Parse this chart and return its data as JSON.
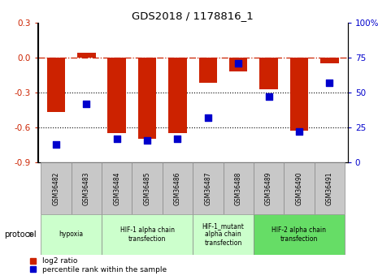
{
  "title": "GDS2018 / 1178816_1",
  "samples": [
    "GSM36482",
    "GSM36483",
    "GSM36484",
    "GSM36485",
    "GSM36486",
    "GSM36487",
    "GSM36488",
    "GSM36489",
    "GSM36490",
    "GSM36491"
  ],
  "log2_ratio": [
    -0.47,
    0.04,
    -0.65,
    -0.7,
    -0.65,
    -0.22,
    -0.12,
    -0.27,
    -0.63,
    -0.05
  ],
  "percentile_rank": [
    13,
    42,
    17,
    16,
    17,
    32,
    71,
    47,
    22,
    57
  ],
  "ylim_left": [
    -0.9,
    0.3
  ],
  "ylim_right": [
    0,
    100
  ],
  "left_ticks": [
    -0.9,
    -0.6,
    -0.3,
    0.0,
    0.3
  ],
  "right_ticks": [
    0,
    25,
    50,
    75,
    100
  ],
  "bar_color": "#cc2200",
  "dot_color": "#0000cc",
  "dot_size": 28,
  "dotted_lines": [
    -0.3,
    -0.6
  ],
  "protocol_groups": [
    {
      "label": "hypoxia",
      "start": 0,
      "end": 1,
      "color": "#ccffcc"
    },
    {
      "label": "HIF-1 alpha chain\ntransfection",
      "start": 2,
      "end": 4,
      "color": "#ccffcc"
    },
    {
      "label": "HIF-1_mutant\nalpha chain\ntransfection",
      "start": 5,
      "end": 6,
      "color": "#ccffcc"
    },
    {
      "label": "HIF-2 alpha chain\ntransfection",
      "start": 7,
      "end": 9,
      "color": "#66dd66"
    }
  ],
  "legend_bar_label": "log2 ratio",
  "legend_dot_label": "percentile rank within the sample",
  "protocol_label": "protocol",
  "sample_box_color": "#c8c8c8",
  "bar_width": 0.6
}
